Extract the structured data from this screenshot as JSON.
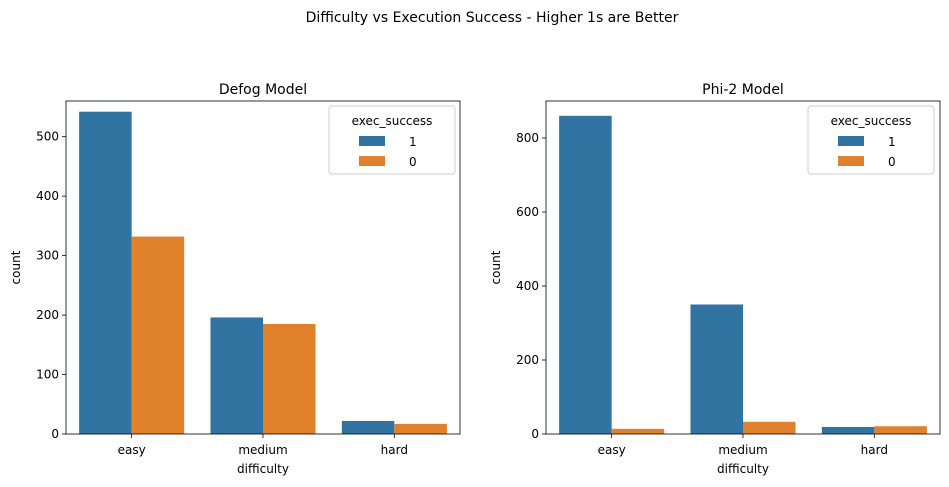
{
  "figure": {
    "suptitle": "Difficulty vs Execution Success - Higher 1s are Better"
  },
  "chart_data": [
    {
      "type": "bar",
      "title": "Defog Model",
      "xlabel": "difficulty",
      "ylabel": "count",
      "categories": [
        "easy",
        "medium",
        "hard"
      ],
      "ylim": [
        0,
        560
      ],
      "yticks": [
        0,
        100,
        200,
        300,
        400,
        500
      ],
      "grid": false,
      "legend": {
        "title": "exec_success",
        "placement": "upper-right"
      },
      "series": [
        {
          "name": "1",
          "color": "#3274a1",
          "values": [
            542,
            196,
            22
          ]
        },
        {
          "name": "0",
          "color": "#e1812c",
          "values": [
            332,
            185,
            17
          ]
        }
      ]
    },
    {
      "type": "bar",
      "title": "Phi-2 Model",
      "xlabel": "difficulty",
      "ylabel": "count",
      "categories": [
        "easy",
        "medium",
        "hard"
      ],
      "ylim": [
        0,
        900
      ],
      "yticks": [
        0,
        200,
        400,
        600,
        800
      ],
      "grid": false,
      "legend": {
        "title": "exec_success",
        "placement": "upper-right"
      },
      "series": [
        {
          "name": "1",
          "color": "#3274a1",
          "values": [
            860,
            350,
            19
          ]
        },
        {
          "name": "0",
          "color": "#e1812c",
          "values": [
            14,
            33,
            21
          ]
        }
      ]
    }
  ]
}
